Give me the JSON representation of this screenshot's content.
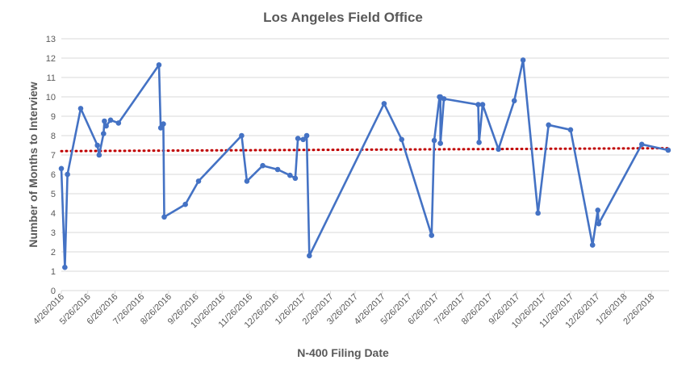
{
  "chart_data": {
    "type": "line",
    "title": "Los Angeles Field Office",
    "xlabel": "N-400 Filing Date",
    "ylabel": "Number of Months to Interview",
    "ylim": [
      0,
      13
    ],
    "yticks": [
      0,
      1,
      2,
      3,
      4,
      5,
      6,
      7,
      8,
      9,
      10,
      11,
      12,
      13
    ],
    "xlim": [
      "2016-04-26",
      "2018-03-18"
    ],
    "xticks": [
      "4/26/2016",
      "5/26/2016",
      "6/26/2016",
      "7/26/2016",
      "8/26/2016",
      "9/26/2016",
      "10/26/2016",
      "11/26/2016",
      "12/26/2016",
      "1/26/2017",
      "2/26/2017",
      "3/26/2017",
      "4/26/2017",
      "5/26/2017",
      "6/26/2017",
      "7/26/2017",
      "8/26/2017",
      "9/26/2017",
      "10/26/2017",
      "11/26/2017",
      "12/26/2017",
      "1/26/2018",
      "2/26/2018"
    ],
    "grid": "horizontal",
    "colors": {
      "series": "#4472C4",
      "trendline": "#C00000",
      "grid": "#D9D9D9",
      "axis_text": "#595959"
    },
    "series": [
      {
        "type": "line",
        "points": [
          [
            "2016-04-26",
            6.3
          ],
          [
            "2016-04-30",
            1.2
          ],
          [
            "2016-05-03",
            6.0
          ],
          [
            "2016-05-18",
            9.4
          ],
          [
            "2016-06-06",
            7.5
          ],
          [
            "2016-06-08",
            7.0
          ],
          [
            "2016-06-13",
            8.1
          ],
          [
            "2016-06-14",
            8.75
          ],
          [
            "2016-06-16",
            8.5
          ],
          [
            "2016-06-21",
            8.8
          ],
          [
            "2016-06-30",
            8.65
          ],
          [
            "2016-08-15",
            11.65
          ],
          [
            "2016-08-17",
            8.4
          ],
          [
            "2016-08-20",
            8.6
          ],
          [
            "2016-08-21",
            3.8
          ],
          [
            "2016-09-14",
            4.45
          ],
          [
            "2016-09-29",
            5.65
          ],
          [
            "2016-11-17",
            8.0
          ],
          [
            "2016-11-23",
            5.65
          ],
          [
            "2016-12-11",
            6.45
          ],
          [
            "2016-12-28",
            6.25
          ],
          [
            "2017-01-11",
            5.95
          ],
          [
            "2017-01-17",
            5.8
          ],
          [
            "2017-01-20",
            7.85
          ],
          [
            "2017-01-26",
            7.8
          ],
          [
            "2017-01-30",
            8.0
          ],
          [
            "2017-02-02",
            1.8
          ],
          [
            "2017-04-28",
            9.65
          ],
          [
            "2017-05-18",
            7.8
          ],
          [
            "2017-06-21",
            2.85
          ],
          [
            "2017-06-24",
            7.75
          ],
          [
            "2017-06-30",
            10.0
          ],
          [
            "2017-07-01",
            10.0
          ],
          [
            "2017-07-01",
            7.6
          ],
          [
            "2017-07-05",
            9.9
          ],
          [
            "2017-08-13",
            9.6
          ],
          [
            "2017-08-14",
            7.65
          ],
          [
            "2017-08-18",
            9.6
          ],
          [
            "2017-09-05",
            7.3
          ],
          [
            "2017-09-23",
            9.8
          ],
          [
            "2017-10-03",
            11.9
          ],
          [
            "2017-10-20",
            4.0
          ],
          [
            "2017-11-01",
            8.55
          ],
          [
            "2017-11-26",
            8.3
          ],
          [
            "2017-12-21",
            2.35
          ],
          [
            "2017-12-27",
            4.15
          ],
          [
            "2017-12-28",
            3.45
          ],
          [
            "2018-02-15",
            7.55
          ],
          [
            "2018-03-17",
            7.25
          ]
        ]
      },
      {
        "type": "linear-trendline",
        "points": [
          [
            "2016-04-26",
            7.2
          ],
          [
            "2018-03-18",
            7.35
          ]
        ]
      }
    ]
  }
}
